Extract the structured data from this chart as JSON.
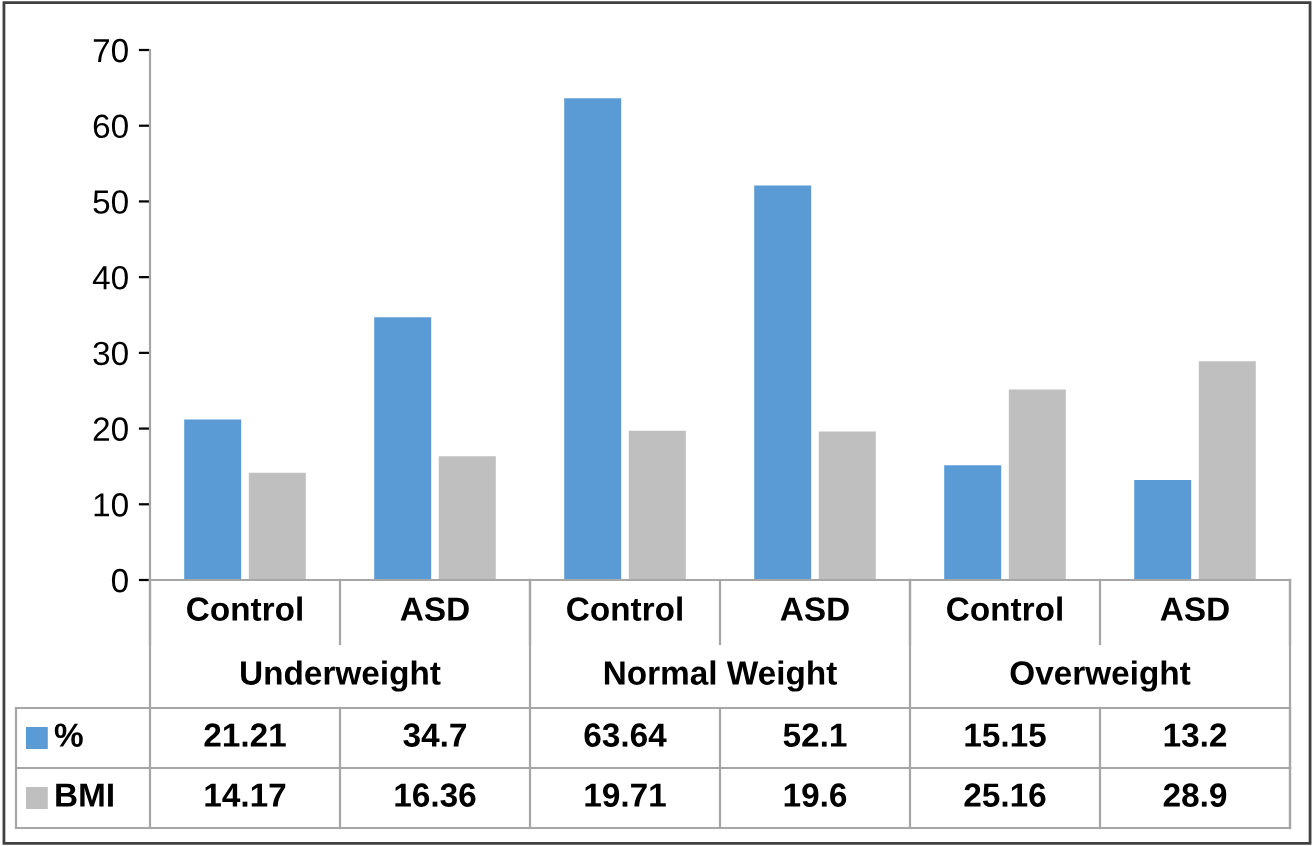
{
  "chart_data": {
    "type": "bar",
    "categories": [
      "Control",
      "ASD",
      "Control",
      "ASD",
      "Control",
      "ASD"
    ],
    "annotations": [
      "Underweight",
      "Normal Weight",
      "Overweight"
    ],
    "series": [
      {
        "name": "%",
        "color": "#5b9bd5",
        "values": [
          21.21,
          34.7,
          63.64,
          52.1,
          15.15,
          13.2
        ]
      },
      {
        "name": "BMI",
        "color": "#bfbfbf",
        "values": [
          14.17,
          16.36,
          19.71,
          19.6,
          25.16,
          28.9
        ]
      }
    ],
    "ylim": [
      0,
      70
    ],
    "yticks": [
      0,
      10,
      20,
      30,
      40,
      50,
      60,
      70
    ],
    "grid": false,
    "legend": "bottom left",
    "data_labels": true
  }
}
